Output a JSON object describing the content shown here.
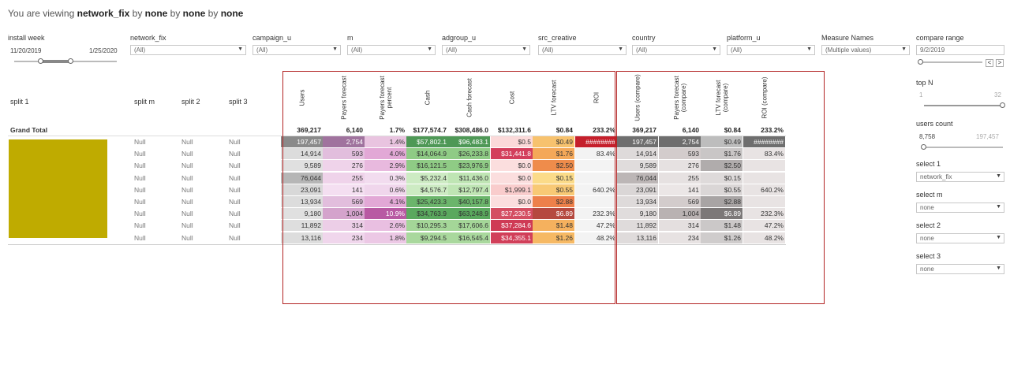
{
  "title": {
    "prefix": "You are viewing ",
    "v1": "network_fix",
    "m1": " by ",
    "v2": "none",
    "m2": " by ",
    "v3": "none",
    "m3": " by ",
    "v4": "none"
  },
  "filters": {
    "install_week": {
      "label": "install week",
      "start": "11/20/2019",
      "end": "1/25/2020"
    },
    "dropdowns": [
      {
        "label": "network_fix",
        "value": "(All)"
      },
      {
        "label": "campaign_u",
        "value": "(All)"
      },
      {
        "label": "m",
        "value": "(All)"
      },
      {
        "label": "adgroup_u",
        "value": "(All)"
      },
      {
        "label": "src_creative",
        "value": "(All)"
      },
      {
        "label": "country",
        "value": "(All)"
      },
      {
        "label": "platform_u",
        "value": "(All)"
      },
      {
        "label": "Measure Names",
        "value": "(Multiple values)"
      }
    ],
    "compare_range": {
      "label": "compare range",
      "value": "9/2/2019",
      "prev": "<",
      "next": ">"
    }
  },
  "right_panel": {
    "top_n": {
      "label": "top N",
      "min": "1",
      "max": "32",
      "level": 1.0
    },
    "users_count": {
      "label": "users count",
      "min": "8,758",
      "max": "197,457",
      "level": 0.0
    },
    "selects": [
      {
        "label": "select 1",
        "value": "network_fix"
      },
      {
        "label": "select m",
        "value": "none"
      },
      {
        "label": "select 2",
        "value": "none"
      },
      {
        "label": "select 3",
        "value": "none"
      }
    ]
  },
  "table": {
    "split_headers": [
      "split 1",
      "split m",
      "split 2",
      "split 3"
    ],
    "measure_headers": [
      "Users",
      "Payers forecast",
      "Payers forecast percent",
      "Cash",
      "Cash forecast",
      "Cost",
      "LTV forecast",
      "ROI",
      "Users (compare)",
      "Payers forecast (compare)",
      "LTV forecast (compare)",
      "ROI (compare)"
    ],
    "grand_total": {
      "label": "Grand Total",
      "values": [
        "369,217",
        "6,140",
        "1.7%",
        "$177,574.7",
        "$308,486.0",
        "$132,311.6",
        "$0.84",
        "233.2%",
        "369,217",
        "6,140",
        "$0.84",
        "233.2%"
      ]
    },
    "rows": [
      {
        "label": "",
        "split_m": "Null",
        "split_2": "Null",
        "split_3": "Null",
        "values": [
          "197,457",
          "2,754",
          "1.4%",
          "$57,802.1",
          "$96,483.1",
          "$0.5",
          "$0.49",
          "########",
          "197,457",
          "2,754",
          "$0.49",
          "########"
        ],
        "colors": [
          "#8a8a8a",
          "#a0739e",
          "#e9c4e0",
          "#4e9856",
          "#4e9856",
          "#fbd9d9",
          "#f7c26e",
          "#c51f2b",
          "#6e6e6e",
          "#6e6e6e",
          "#bdbdbd",
          "#6e6e6e"
        ],
        "text": [
          "#ffffff",
          "#ffffff",
          "#333333",
          "#ffffff",
          "#ffffff",
          "#333333",
          "#333333",
          "#ffffff",
          "#ffffff",
          "#ffffff",
          "#333333",
          "#ffffff"
        ]
      },
      {
        "label": "",
        "split_m": "Null",
        "split_2": "Null",
        "split_3": "Null",
        "values": [
          "14,914",
          "593",
          "4.0%",
          "$14,064.9",
          "$26,233.8",
          "$31,441.8",
          "$1.76",
          "83.4%",
          "14,914",
          "593",
          "$1.76",
          "83.4%"
        ],
        "colors": [
          "#dcdcdc",
          "#e2bedd",
          "#e2a8d6",
          "#8fcb85",
          "#8fcb85",
          "#d33f5c",
          "#f4a859",
          "#f3f3f3",
          "#dedada",
          "#d3cccc",
          "#c9c6c6",
          "#e8e3e3"
        ],
        "text": [
          "#333333",
          "#333333",
          "#333333",
          "#333333",
          "#333333",
          "#ffffff",
          "#333333",
          "#333333",
          "#333333",
          "#333333",
          "#333333",
          "#333333"
        ]
      },
      {
        "label": "",
        "split_m": "Null",
        "split_2": "Null",
        "split_3": "Null",
        "values": [
          "9,589",
          "276",
          "2.9%",
          "$16,121.5",
          "$23,976.9",
          "$0.0",
          "$2.50",
          "",
          "9,589",
          "276",
          "$2.50",
          ""
        ],
        "colors": [
          "#e0e0e0",
          "#efd3ea",
          "#e8b9de",
          "#8fcb85",
          "#8fcb85",
          "#fbdede",
          "#ef8c4b",
          "#f3f3f3",
          "#e0dcdc",
          "#e6e1e1",
          "#b0acac",
          "#e8e3e3"
        ],
        "text": [
          "#333333",
          "#333333",
          "#333333",
          "#333333",
          "#333333",
          "#333333",
          "#333333",
          "#333333",
          "#333333",
          "#333333",
          "#333333",
          "#333333"
        ]
      },
      {
        "label": "",
        "split_m": "Null",
        "split_2": "Null",
        "split_3": "Null",
        "values": [
          "76,044",
          "255",
          "0.3%",
          "$5,232.4",
          "$11,436.0",
          "$0.0",
          "$0.15",
          "",
          "76,044",
          "255",
          "$0.15",
          ""
        ],
        "colors": [
          "#b6b6b6",
          "#efd3ea",
          "#f2dcef",
          "#cdebc3",
          "#bfe5b4",
          "#fbdede",
          "#fbdb89",
          "#f3f3f3",
          "#bcb6b6",
          "#e6e1e1",
          "#dedada",
          "#e8e3e3"
        ],
        "text": [
          "#333333",
          "#333333",
          "#333333",
          "#333333",
          "#333333",
          "#333333",
          "#333333",
          "#333333",
          "#333333",
          "#333333",
          "#333333",
          "#333333"
        ]
      },
      {
        "label": "",
        "split_m": "Null",
        "split_2": "Null",
        "split_3": "Null",
        "values": [
          "23,091",
          "141",
          "0.6%",
          "$4,576.7",
          "$12,797.4",
          "$1,999.1",
          "$0.55",
          "640.2%",
          "23,091",
          "141",
          "$0.55",
          "640.2%"
        ],
        "colors": [
          "#d8d8d8",
          "#f4dff1",
          "#f0d6ec",
          "#cdebc3",
          "#bfe5b4",
          "#f9cccc",
          "#f8c975",
          "#f3f3f3",
          "#dad6d6",
          "#ebe6e6",
          "#dad6d6",
          "#e8e3e3"
        ],
        "text": [
          "#333333",
          "#333333",
          "#333333",
          "#333333",
          "#333333",
          "#333333",
          "#333333",
          "#333333",
          "#333333",
          "#333333",
          "#333333",
          "#333333"
        ]
      },
      {
        "label": "",
        "split_m": "Null",
        "split_2": "Null",
        "split_3": "Null",
        "values": [
          "13,934",
          "569",
          "4.1%",
          "$25,423.3",
          "$40,157.8",
          "$0.0",
          "$2.88",
          "",
          "13,934",
          "569",
          "$2.88",
          ""
        ],
        "colors": [
          "#dcdcdc",
          "#e2bedd",
          "#e2a8d6",
          "#6bb56b",
          "#6bb56b",
          "#fbdede",
          "#ed804a",
          "#f3f3f3",
          "#dedada",
          "#d3cccc",
          "#a8a4a4",
          "#e8e3e3"
        ],
        "text": [
          "#333333",
          "#333333",
          "#333333",
          "#333333",
          "#333333",
          "#333333",
          "#333333",
          "#333333",
          "#333333",
          "#333333",
          "#333333",
          "#333333"
        ]
      },
      {
        "label": "",
        "split_m": "Null",
        "split_2": "Null",
        "split_3": "Null",
        "values": [
          "9,180",
          "1,004",
          "10.9%",
          "$34,763.9",
          "$63,248.9",
          "$27,230.5",
          "$6.89",
          "232.3%",
          "9,180",
          "1,004",
          "$6.89",
          "232.3%"
        ],
        "colors": [
          "#e0e0e0",
          "#d4a3cc",
          "#b85aa3",
          "#5aa85e",
          "#5aa85e",
          "#d44e62",
          "#b5493f",
          "#f3f3f3",
          "#e0dcdc",
          "#b9b2b2",
          "#7c7878",
          "#e8e3e3"
        ],
        "text": [
          "#333333",
          "#333333",
          "#ffffff",
          "#333333",
          "#333333",
          "#ffffff",
          "#ffffff",
          "#333333",
          "#333333",
          "#333333",
          "#ffffff",
          "#333333"
        ]
      },
      {
        "label": "",
        "split_m": "Null",
        "split_2": "Null",
        "split_3": "Null",
        "values": [
          "11,892",
          "314",
          "2.6%",
          "$10,295.3",
          "$17,606.6",
          "$37,284.6",
          "$1.48",
          "47.2%",
          "11,892",
          "314",
          "$1.48",
          "47.2%"
        ],
        "colors": [
          "#dedede",
          "#ecceE7",
          "#e9bfe1",
          "#a4d698",
          "#a4d698",
          "#cf3a55",
          "#f5b15e",
          "#f3f3f3",
          "#dfdbdb",
          "#e4dfdf",
          "#cbc8c8",
          "#e8e3e3"
        ],
        "text": [
          "#333333",
          "#333333",
          "#333333",
          "#333333",
          "#333333",
          "#ffffff",
          "#333333",
          "#333333",
          "#333333",
          "#333333",
          "#333333",
          "#333333"
        ]
      },
      {
        "label": "",
        "split_m": "Null",
        "split_2": "Null",
        "split_3": "Null",
        "values": [
          "13,116",
          "234",
          "1.8%",
          "$9,294.5",
          "$16,545.4",
          "$34,355.1",
          "$1.26",
          "48.2%",
          "13,116",
          "234",
          "$1.26",
          "48.2%"
        ],
        "colors": [
          "#dddddd",
          "#f0d6ec",
          "#ecc8e5",
          "#a9d89d",
          "#a9d89d",
          "#d13f59",
          "#f6b964",
          "#f3f3f3",
          "#dfdbdb",
          "#e7e2e2",
          "#cfcccc",
          "#e8e3e3"
        ],
        "text": [
          "#333333",
          "#333333",
          "#333333",
          "#333333",
          "#333333",
          "#ffffff",
          "#333333",
          "#333333",
          "#333333",
          "#333333",
          "#333333",
          "#333333"
        ]
      }
    ]
  }
}
